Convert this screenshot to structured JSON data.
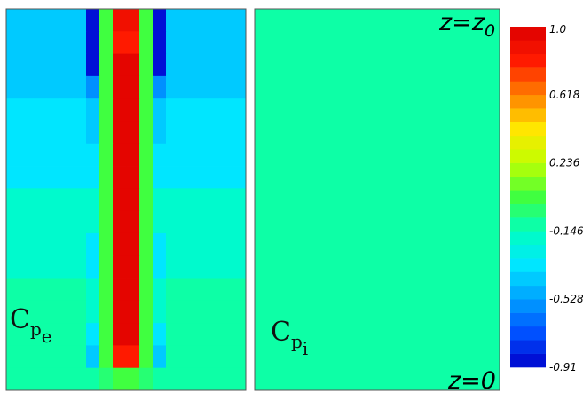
{
  "chart_data": [
    {
      "type": "heatmap",
      "label_main": "C",
      "label_sub": "p",
      "label_subsub": "e",
      "colormap": "rainbow_banded",
      "vmin": -0.91,
      "vmax": 1.0,
      "grid": [
        [
          -0.45,
          -0.45,
          -0.45,
          -0.45,
          -0.45,
          -0.45,
          -0.91,
          0.05,
          0.9,
          0.9,
          0.05,
          -0.91,
          -0.45,
          -0.45,
          -0.45,
          -0.45,
          -0.45,
          -0.45
        ],
        [
          -0.45,
          -0.45,
          -0.45,
          -0.45,
          -0.45,
          -0.45,
          -0.91,
          0.05,
          0.8,
          0.8,
          0.05,
          -0.91,
          -0.45,
          -0.45,
          -0.45,
          -0.45,
          -0.45,
          -0.45
        ],
        [
          -0.45,
          -0.45,
          -0.45,
          -0.45,
          -0.45,
          -0.45,
          -0.91,
          0.05,
          1.0,
          1.0,
          0.05,
          -0.91,
          -0.45,
          -0.45,
          -0.45,
          -0.45,
          -0.45,
          -0.45
        ],
        [
          -0.45,
          -0.45,
          -0.45,
          -0.45,
          -0.45,
          -0.45,
          -0.6,
          0.05,
          1.0,
          1.0,
          0.05,
          -0.6,
          -0.45,
          -0.45,
          -0.45,
          -0.45,
          -0.45,
          -0.45
        ],
        [
          -0.3,
          -0.3,
          -0.3,
          -0.3,
          -0.3,
          -0.3,
          -0.45,
          0.05,
          1.0,
          1.0,
          0.05,
          -0.45,
          -0.3,
          -0.3,
          -0.3,
          -0.3,
          -0.3,
          -0.3
        ],
        [
          -0.3,
          -0.3,
          -0.3,
          -0.3,
          -0.3,
          -0.3,
          -0.45,
          0.05,
          1.0,
          1.0,
          0.05,
          -0.45,
          -0.3,
          -0.3,
          -0.3,
          -0.3,
          -0.3,
          -0.3
        ],
        [
          -0.3,
          -0.3,
          -0.3,
          -0.3,
          -0.3,
          -0.3,
          -0.3,
          0.05,
          1.0,
          1.0,
          0.05,
          -0.3,
          -0.3,
          -0.3,
          -0.3,
          -0.3,
          -0.3,
          -0.3
        ],
        [
          -0.3,
          -0.3,
          -0.3,
          -0.3,
          -0.3,
          -0.3,
          -0.3,
          0.05,
          1.0,
          1.0,
          0.05,
          -0.3,
          -0.3,
          -0.3,
          -0.3,
          -0.3,
          -0.3,
          -0.3
        ],
        [
          -0.2,
          -0.2,
          -0.2,
          -0.2,
          -0.2,
          -0.2,
          -0.2,
          0.05,
          1.0,
          1.0,
          0.05,
          -0.2,
          -0.2,
          -0.2,
          -0.2,
          -0.2,
          -0.2,
          -0.2
        ],
        [
          -0.2,
          -0.2,
          -0.2,
          -0.2,
          -0.2,
          -0.2,
          -0.2,
          0.05,
          1.0,
          1.0,
          0.05,
          -0.2,
          -0.2,
          -0.2,
          -0.2,
          -0.2,
          -0.2,
          -0.2
        ],
        [
          -0.2,
          -0.2,
          -0.2,
          -0.2,
          -0.2,
          -0.2,
          -0.3,
          0.05,
          1.0,
          1.0,
          0.05,
          -0.3,
          -0.2,
          -0.2,
          -0.2,
          -0.2,
          -0.2,
          -0.2
        ],
        [
          -0.2,
          -0.2,
          -0.2,
          -0.2,
          -0.2,
          -0.2,
          -0.3,
          0.05,
          1.0,
          1.0,
          0.05,
          -0.3,
          -0.2,
          -0.2,
          -0.2,
          -0.2,
          -0.2,
          -0.2
        ],
        [
          -0.1,
          -0.1,
          -0.1,
          -0.1,
          -0.1,
          -0.1,
          -0.2,
          0.05,
          1.0,
          1.0,
          0.05,
          -0.2,
          -0.1,
          -0.1,
          -0.1,
          -0.1,
          -0.1,
          -0.1
        ],
        [
          -0.1,
          -0.1,
          -0.1,
          -0.1,
          -0.1,
          -0.1,
          -0.2,
          0.05,
          1.0,
          1.0,
          0.05,
          -0.2,
          -0.1,
          -0.1,
          -0.1,
          -0.1,
          -0.1,
          -0.1
        ],
        [
          -0.1,
          -0.1,
          -0.1,
          -0.1,
          -0.1,
          -0.1,
          -0.3,
          0.05,
          1.0,
          1.0,
          0.05,
          -0.3,
          -0.1,
          -0.1,
          -0.1,
          -0.1,
          -0.1,
          -0.1
        ],
        [
          -0.1,
          -0.1,
          -0.1,
          -0.1,
          -0.1,
          -0.1,
          -0.45,
          0.05,
          0.8,
          0.8,
          0.05,
          -0.45,
          -0.1,
          -0.1,
          -0.1,
          -0.1,
          -0.1,
          -0.1
        ],
        [
          -0.1,
          -0.1,
          -0.1,
          -0.1,
          -0.1,
          -0.1,
          -0.1,
          -0.05,
          0.05,
          0.05,
          -0.05,
          -0.1,
          -0.1,
          -0.1,
          -0.1,
          -0.1,
          -0.1,
          -0.1
        ]
      ]
    },
    {
      "type": "heatmap",
      "label_main": "C",
      "label_sub": "p",
      "label_subsub": "i",
      "uniform_value": -0.12,
      "top_label": "z=z",
      "top_label_sub": "0",
      "bottom_label": "z=0"
    }
  ],
  "colorbar": {
    "max_label": "1.0",
    "min_label": "-0.91",
    "ticks": [
      {
        "value": 0.618,
        "label": "0.618"
      },
      {
        "value": 0.236,
        "label": "0.236"
      },
      {
        "value": -0.146,
        "label": "-0.146"
      },
      {
        "value": -0.528,
        "label": "-0.528"
      }
    ],
    "bands": 25
  },
  "colors": {
    "palette": [
      "#0000cc",
      "#0050ff",
      "#00a0ff",
      "#00e6ff",
      "#00ffc0",
      "#40ff40",
      "#c0ff00",
      "#ffe600",
      "#ff8000",
      "#ff1a00",
      "#dd0000"
    ],
    "cell_border": "#6a86a0",
    "frame": "#555555"
  }
}
